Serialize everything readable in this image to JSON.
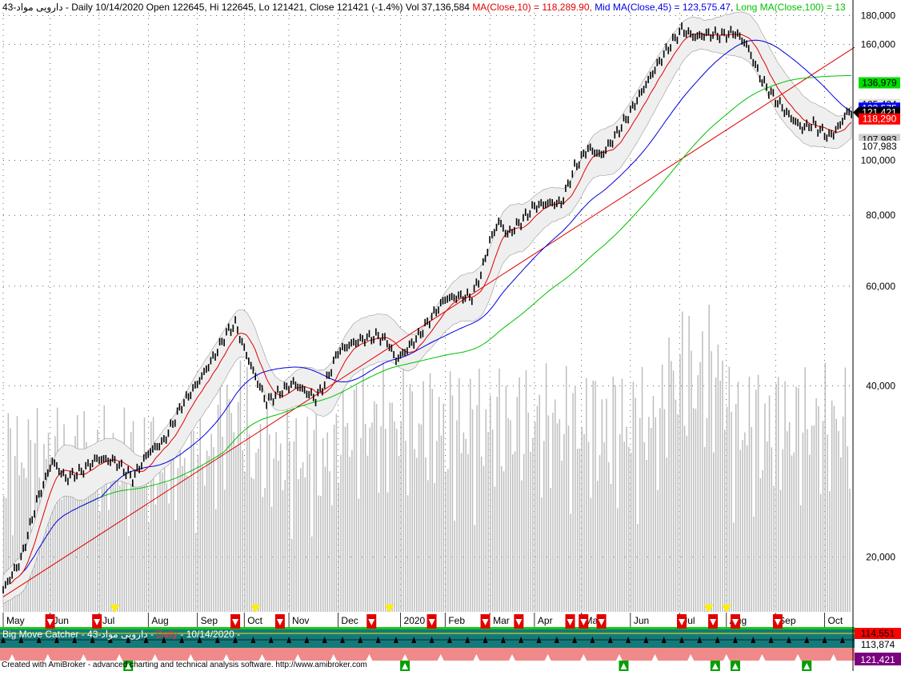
{
  "header": {
    "prefix": "43-دارویی مواد - Daily 10/14/2020 Open 122645, Hi 122645, Lo 121421, Close 121421 (-1.4%) Vol 37,136,584",
    "ma10": "MA(Close,10) = 118,289.90,",
    "mid_ma": "Mid MA(Close,45) = 123,575.47,",
    "long_ma": "Long MA(Close,100) = 13"
  },
  "panel2": {
    "title_name": "Big Move Catcher",
    "title_sym": "- 43-دارویی مواد -",
    "title_daily": "Daily",
    "title_date": "- 10/14/2020 -",
    "price_label_top": "114,551",
    "price_label_mid": "113,874",
    "price_label_bottom": "121,421"
  },
  "footer": {
    "credit": "Created with AmiBroker - advanced charting and technical analysis software. http://www.amibroker.com"
  },
  "colors": {
    "price": "#000000",
    "ma10": "#e00000",
    "mid_ma": "#0000e0",
    "long_ma": "#00c000",
    "trendline": "#e00000",
    "band_fill": "#efefef",
    "volume": "#bdbdbd"
  },
  "chart_data": {
    "type": "line",
    "scale": "log",
    "ylim": [
      16000,
      182000
    ],
    "y_ticks": [
      {
        "value": 20000,
        "label": "20,000"
      },
      {
        "value": 40000,
        "label": "40,000"
      },
      {
        "value": 60000,
        "label": "60,000"
      },
      {
        "value": 80000,
        "label": "80,000"
      },
      {
        "value": 100000,
        "label": "100,000"
      },
      {
        "value": 160000,
        "label": "160,000"
      },
      {
        "value": 180000,
        "label": "180,000"
      }
    ],
    "x_months": [
      {
        "label": "May",
        "bar": 0
      },
      {
        "label": "Jun",
        "bar": 21
      },
      {
        "label": "Jul",
        "bar": 43
      },
      {
        "label": "Aug",
        "bar": 65
      },
      {
        "label": "Sep",
        "bar": 87
      },
      {
        "label": "Oct",
        "bar": 108
      },
      {
        "label": "Nov",
        "bar": 128
      },
      {
        "label": "Dec",
        "bar": 150
      },
      {
        "label": "2020",
        "bar": 178
      },
      {
        "label": "Feb",
        "bar": 198
      },
      {
        "label": "Mar",
        "bar": 218
      },
      {
        "label": "Apr",
        "bar": 238
      },
      {
        "label": "May",
        "bar": 259
      },
      {
        "label": "Jun",
        "bar": 281
      },
      {
        "label": "Jul",
        "bar": 303
      },
      {
        "label": "Aug",
        "bar": 324
      },
      {
        "label": "Sep",
        "bar": 346
      },
      {
        "label": "Oct",
        "bar": 368
      }
    ],
    "bars_total": 380,
    "price_anchors": [
      [
        0,
        17500
      ],
      [
        8,
        19800
      ],
      [
        15,
        25000
      ],
      [
        22,
        29500
      ],
      [
        28,
        27500
      ],
      [
        35,
        28300
      ],
      [
        42,
        29800
      ],
      [
        50,
        29500
      ],
      [
        58,
        27500
      ],
      [
        65,
        30500
      ],
      [
        72,
        32000
      ],
      [
        80,
        37000
      ],
      [
        88,
        41000
      ],
      [
        95,
        45500
      ],
      [
        100,
        49500
      ],
      [
        104,
        51500
      ],
      [
        108,
        46500
      ],
      [
        113,
        41500
      ],
      [
        118,
        37500
      ],
      [
        124,
        39000
      ],
      [
        130,
        40500
      ],
      [
        136,
        39000
      ],
      [
        140,
        38000
      ],
      [
        145,
        41000
      ],
      [
        150,
        46000
      ],
      [
        156,
        47500
      ],
      [
        162,
        48500
      ],
      [
        168,
        49000
      ],
      [
        172,
        48000
      ],
      [
        176,
        44500
      ],
      [
        180,
        46000
      ],
      [
        186,
        49000
      ],
      [
        192,
        53000
      ],
      [
        198,
        57000
      ],
      [
        204,
        57500
      ],
      [
        210,
        57500
      ],
      [
        214,
        63000
      ],
      [
        218,
        72000
      ],
      [
        222,
        78000
      ],
      [
        226,
        74000
      ],
      [
        232,
        78000
      ],
      [
        238,
        83000
      ],
      [
        244,
        84000
      ],
      [
        250,
        84000
      ],
      [
        256,
        97000
      ],
      [
        262,
        105000
      ],
      [
        268,
        102000
      ],
      [
        274,
        110000
      ],
      [
        280,
        120000
      ],
      [
        286,
        132000
      ],
      [
        292,
        145000
      ],
      [
        298,
        158000
      ],
      [
        304,
        170000
      ],
      [
        310,
        165000
      ],
      [
        316,
        167000
      ],
      [
        322,
        166000
      ],
      [
        328,
        168000
      ],
      [
        333,
        160000
      ],
      [
        336,
        150000
      ],
      [
        340,
        138000
      ],
      [
        346,
        128000
      ],
      [
        352,
        120000
      ],
      [
        358,
        114000
      ],
      [
        363,
        116000
      ],
      [
        366,
        113000
      ],
      [
        370,
        110000
      ],
      [
        374,
        114000
      ],
      [
        378,
        121500
      ],
      [
        380,
        121421
      ]
    ],
    "series": [
      {
        "name": "MA(Close,10)",
        "value": 118289.9
      },
      {
        "name": "Mid MA(Close,45)",
        "value": 123575.47
      },
      {
        "name": "Long MA(Close,100)",
        "value": null
      }
    ],
    "right_labels": [
      {
        "value": 136979,
        "label": "136,979",
        "bg": "#00dd00",
        "fg": "#000000"
      },
      {
        "value": 125424,
        "label": "125,424",
        "bg": "#e4e4e4",
        "fg": "#000000"
      },
      {
        "value": 123575,
        "label": "123,575",
        "bg": "#0000ff",
        "fg": "#ffffff"
      },
      {
        "value": 121421,
        "label": "121,421",
        "bg": "#000000",
        "fg": "#ffffff"
      },
      {
        "value": 118290,
        "label": "118,290",
        "bg": "#ff0000",
        "fg": "#ffffff"
      },
      {
        "value": 108800,
        "label": "107,983",
        "bg": "#cfcfcf",
        "fg": "#000000"
      },
      {
        "value": 105800,
        "label": "107,983",
        "bg": "#ffffff",
        "fg": "#000000"
      }
    ],
    "trendline": {
      "start": [
        0,
        17000
      ],
      "end": [
        380,
        139000
      ]
    },
    "volume_max_units": 100,
    "signals": {
      "sell_arrows": [
        21,
        42,
        104,
        124,
        165,
        192,
        216,
        231,
        254,
        260,
        268,
        304,
        318,
        328,
        347
      ],
      "buy_arrows": [
        56,
        180,
        278,
        319,
        328,
        360
      ],
      "yellow_markers": [
        50,
        113,
        173,
        316,
        324
      ]
    }
  }
}
